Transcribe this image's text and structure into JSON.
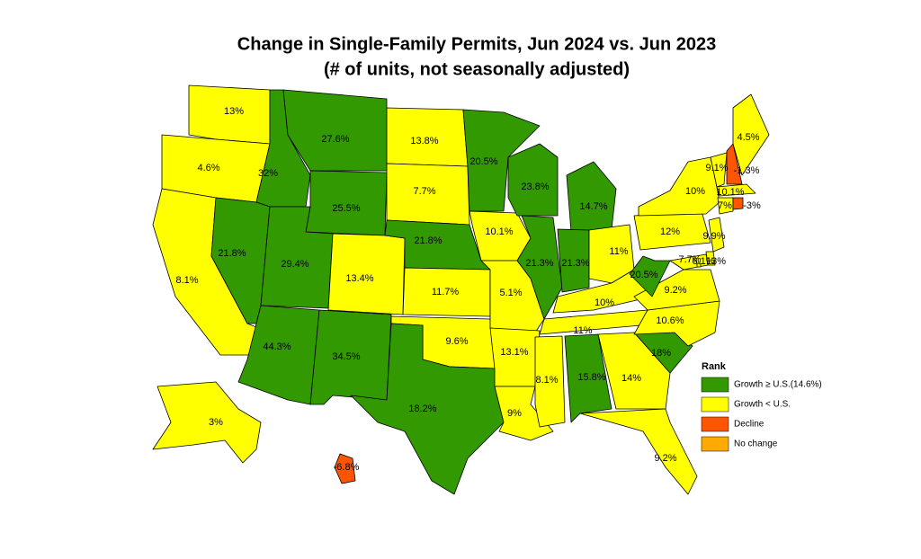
{
  "chart_data": {
    "type": "choropleth",
    "title": "Change in Single-Family Permits, Jun 2024 vs. Jun 2023",
    "subtitle": "(# of units, not seasonally adjusted)",
    "legend": {
      "title": "Rank",
      "entries": [
        {
          "label": "Growth ≥ U.S.(14.6%)",
          "color": "#339900"
        },
        {
          "label": "Growth < U.S.",
          "color": "#ffff00"
        },
        {
          "label": "Decline",
          "color": "#ff5500"
        },
        {
          "label": "No change",
          "color": "#ffaa00"
        }
      ]
    },
    "values": [
      13,
      4.6,
      8.1,
      32,
      21.8,
      27.6,
      25.5,
      29.4,
      13.4,
      44.3,
      34.5,
      13.8,
      7.7,
      21.8,
      11.7,
      9.6,
      18.2,
      20.5,
      10.1,
      5.1,
      13.1,
      9,
      23.8,
      21.3,
      14.7,
      21.3,
      11,
      10,
      11,
      8.1,
      15.8,
      14,
      9.2,
      18,
      10.6,
      9.2,
      20.5,
      12,
      10,
      9.1,
      -1.3,
      4.5,
      10.1,
      7,
      -3,
      9.9,
      7.7,
      6.1,
      13,
      3,
      -6.8
    ],
    "value_labels": [
      "13%",
      "4.6%",
      "8.1%",
      "32%",
      "21.8%",
      "27.6%",
      "25.5%",
      "29.4%",
      "13.4%",
      "44.3%",
      "34.5%",
      "13.8%",
      "7.7%",
      "21.8%",
      "11.7%",
      "9.6%",
      "18.2%",
      "20.5%",
      "10.1%",
      "5.1%",
      "13.1%",
      "9%",
      "23.8%",
      "21.3%",
      "14.7%",
      "21.3%",
      "11%",
      "10%",
      "11%",
      "8.1%",
      "15.8%",
      "14%",
      "9.2%",
      "18%",
      "10.6%",
      "9.2%",
      "20.5%",
      "12%",
      "10%",
      "9.1%",
      "-1.3%",
      "4.5%",
      "10.1%",
      "7%",
      "-3%",
      "9.9%",
      "7.7%",
      "6.1%",
      "13%",
      "3%",
      "-6.8%"
    ],
    "classes": [
      1,
      1,
      1,
      0,
      0,
      0,
      0,
      0,
      1,
      0,
      0,
      1,
      1,
      0,
      1,
      1,
      0,
      0,
      1,
      1,
      1,
      1,
      0,
      0,
      0,
      0,
      1,
      1,
      1,
      1,
      0,
      1,
      1,
      0,
      1,
      1,
      0,
      1,
      1,
      1,
      2,
      1,
      1,
      1,
      2,
      1,
      1,
      1,
      1,
      1,
      2
    ]
  }
}
